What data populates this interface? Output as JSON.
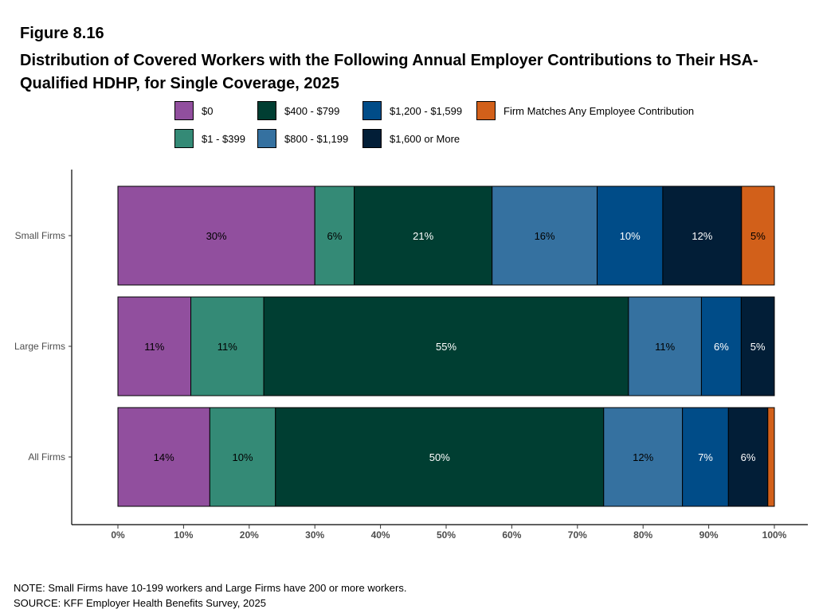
{
  "chart_data": {
    "type": "bar",
    "orientation": "horizontal",
    "stacked": true,
    "figure_label": "Figure 8.16",
    "title": "Distribution of Covered Workers with the Following Annual Employer Contributions to Their HSA-Qualified HDHP, for Single Coverage, 2025",
    "categories": [
      "Small Firms",
      "Large Firms",
      "All Firms"
    ],
    "series": [
      {
        "name": "$0",
        "color": "#914f9e",
        "values": [
          30,
          11,
          14
        ],
        "labels": [
          "30%",
          "11%",
          "14%"
        ],
        "label_color": "#000000"
      },
      {
        "name": "$1 - $399",
        "color": "#348a76",
        "values": [
          6,
          11,
          10
        ],
        "labels": [
          "6%",
          "11%",
          "10%"
        ],
        "label_color": "#000000"
      },
      {
        "name": "$400 - $799",
        "color": "#003e32",
        "values": [
          21,
          55,
          50
        ],
        "labels": [
          "21%",
          "55%",
          "50%"
        ],
        "label_color": "#ffffff"
      },
      {
        "name": "$800 - $1,199",
        "color": "#3571a0",
        "values": [
          16,
          11,
          12
        ],
        "labels": [
          "16%",
          "11%",
          "12%"
        ],
        "label_color": "#000000"
      },
      {
        "name": "$1,200 - $1,599",
        "color": "#004c88",
        "values": [
          10,
          6,
          7
        ],
        "labels": [
          "10%",
          "6%",
          "7%"
        ],
        "label_color": "#ffffff"
      },
      {
        "name": "$1,600 or More",
        "color": "#021e37",
        "values": [
          12,
          5,
          6
        ],
        "labels": [
          "12%",
          "5%",
          "6%"
        ],
        "label_color": "#ffffff"
      },
      {
        "name": "Firm Matches Any Employee Contribution",
        "color": "#d2601a",
        "values": [
          5,
          0,
          1
        ],
        "labels": [
          "5%",
          "",
          ""
        ],
        "label_color": "#000000"
      }
    ],
    "x_ticks": [
      "0%",
      "10%",
      "20%",
      "30%",
      "40%",
      "50%",
      "60%",
      "70%",
      "80%",
      "90%",
      "100%"
    ],
    "xlim": [
      0,
      100
    ],
    "legend_position": "top",
    "grid": false
  },
  "notes": {
    "note": "NOTE: Small Firms have 10-199 workers and Large Firms have 200 or more workers.",
    "source": "SOURCE: KFF Employer Health Benefits Survey, 2025"
  }
}
